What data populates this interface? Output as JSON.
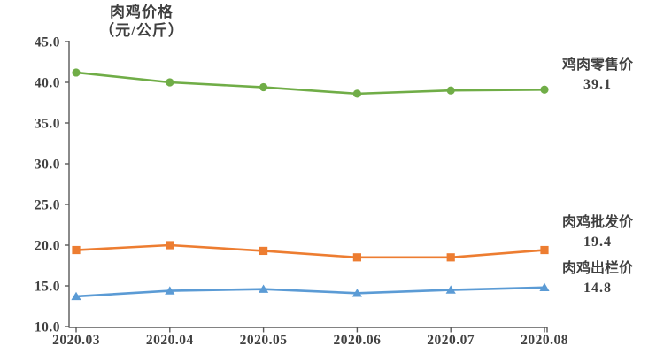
{
  "title": {
    "line1": "肉鸡价格",
    "line2": "（元/公斤）"
  },
  "chart_data": {
    "type": "line",
    "title": "肉鸡价格（元/公斤）",
    "categories": [
      "2020.03",
      "2020.04",
      "2020.05",
      "2020.06",
      "2020.07",
      "2020.08"
    ],
    "series": [
      {
        "name": "鸡肉零售价",
        "values": [
          41.2,
          40.0,
          39.4,
          38.6,
          39.0,
          39.1
        ],
        "color": "#70AD47",
        "marker": "circle",
        "end_label": "39.1"
      },
      {
        "name": "肉鸡批发价",
        "values": [
          19.4,
          20.0,
          19.3,
          18.5,
          18.5,
          19.4
        ],
        "color": "#ED7D31",
        "marker": "square",
        "end_label": "19.4"
      },
      {
        "name": "肉鸡出栏价",
        "values": [
          13.7,
          14.4,
          14.6,
          14.1,
          14.5,
          14.8
        ],
        "color": "#5B9BD5",
        "marker": "triangle",
        "end_label": "14.8"
      }
    ],
    "ylim": [
      10,
      45
    ],
    "ytick_step": 5,
    "ytick_labels": [
      "10.0",
      "15.0",
      "20.0",
      "25.0",
      "30.0",
      "35.0",
      "40.0",
      "45.0"
    ],
    "grid": false,
    "legend_position": "right-end-of-lines"
  },
  "colors": {
    "axis": "#595959",
    "text": "#404040",
    "green": "#70AD47",
    "orange": "#ED7D31",
    "blue": "#5B9BD5"
  }
}
